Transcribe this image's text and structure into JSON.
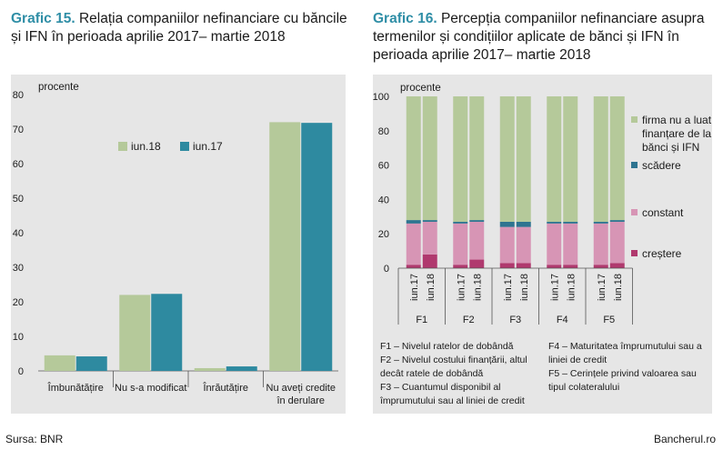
{
  "chart_data": [
    {
      "type": "bar",
      "title_prefix": "Grafic 15.",
      "title": "Relația companiilor nefinanciare cu băncile și IFN în perioada aprilie 2017– martie 2018",
      "ylabel": "procente",
      "ylim": [
        0,
        80
      ],
      "yticks": [
        "0",
        "10",
        "20",
        "30",
        "40",
        "50",
        "60",
        "70",
        "80"
      ],
      "categories": [
        "Îmbunătățire",
        "Nu s-a modificat",
        "Înrăutățire",
        "Nu aveți credite în derulare"
      ],
      "series": [
        {
          "name": "iun.18",
          "color": "#b5c99a",
          "values": [
            4.5,
            22,
            0.8,
            72
          ]
        },
        {
          "name": "iun.17",
          "color": "#2e8aa0",
          "values": [
            4.2,
            22.3,
            1.3,
            71.8
          ]
        }
      ],
      "legend_placement": "top-left inside",
      "grid": false
    },
    {
      "type": "bar",
      "stacked": true,
      "title_prefix": "Grafic 16.",
      "title": "Percepția companiilor nefinanciare asupra termenilor și condițiilor aplicate de bănci și IFN în perioada aprilie 2017– martie 2018",
      "ylabel": "procente",
      "ylim": [
        0,
        100
      ],
      "yticks": [
        "0",
        "20",
        "40",
        "60",
        "80",
        "100"
      ],
      "groups": [
        "F1",
        "F2",
        "F3",
        "F4",
        "F5"
      ],
      "bar_labels": [
        "iun.17",
        "iun.18"
      ],
      "series": [
        {
          "name": "creștere",
          "color": "#b0396e",
          "values": [
            [
              2,
              8
            ],
            [
              2,
              5
            ],
            [
              3,
              3
            ],
            [
              2,
              2
            ],
            [
              2,
              3
            ]
          ]
        },
        {
          "name": "constant",
          "color": "#d795b5",
          "values": [
            [
              24,
              19
            ],
            [
              24,
              22
            ],
            [
              21,
              21
            ],
            [
              24,
              24
            ],
            [
              24,
              24
            ]
          ]
        },
        {
          "name": "scădere",
          "color": "#2e7490",
          "values": [
            [
              2,
              1
            ],
            [
              1,
              1
            ],
            [
              3,
              3
            ],
            [
              1,
              1
            ],
            [
              1,
              1
            ]
          ]
        },
        {
          "name": "firma nu a luat finanțare de la bănci și IFN",
          "color": "#b5c99a",
          "values": [
            [
              72,
              72
            ],
            [
              73,
              72
            ],
            [
              73,
              73
            ],
            [
              73,
              73
            ],
            [
              73,
              72
            ]
          ]
        }
      ],
      "legend_placement": "right",
      "grid": false
    }
  ],
  "notes": {
    "left": [
      "F1 – Nivelul ratelor de dobândă",
      "F2 – Nivelul costului finanțării, altul decât ratele de dobândă",
      "F3 – Cuantumul disponibil al împrumutului sau al liniei de credit"
    ],
    "right": [
      "F4 – Maturitatea împrumutului sau a liniei de credit",
      "F5 – Cerințele privind valoarea sau tipul colateralului"
    ]
  },
  "footer": {
    "source": "Sursa: BNR",
    "site": "Bancherul.ro"
  }
}
